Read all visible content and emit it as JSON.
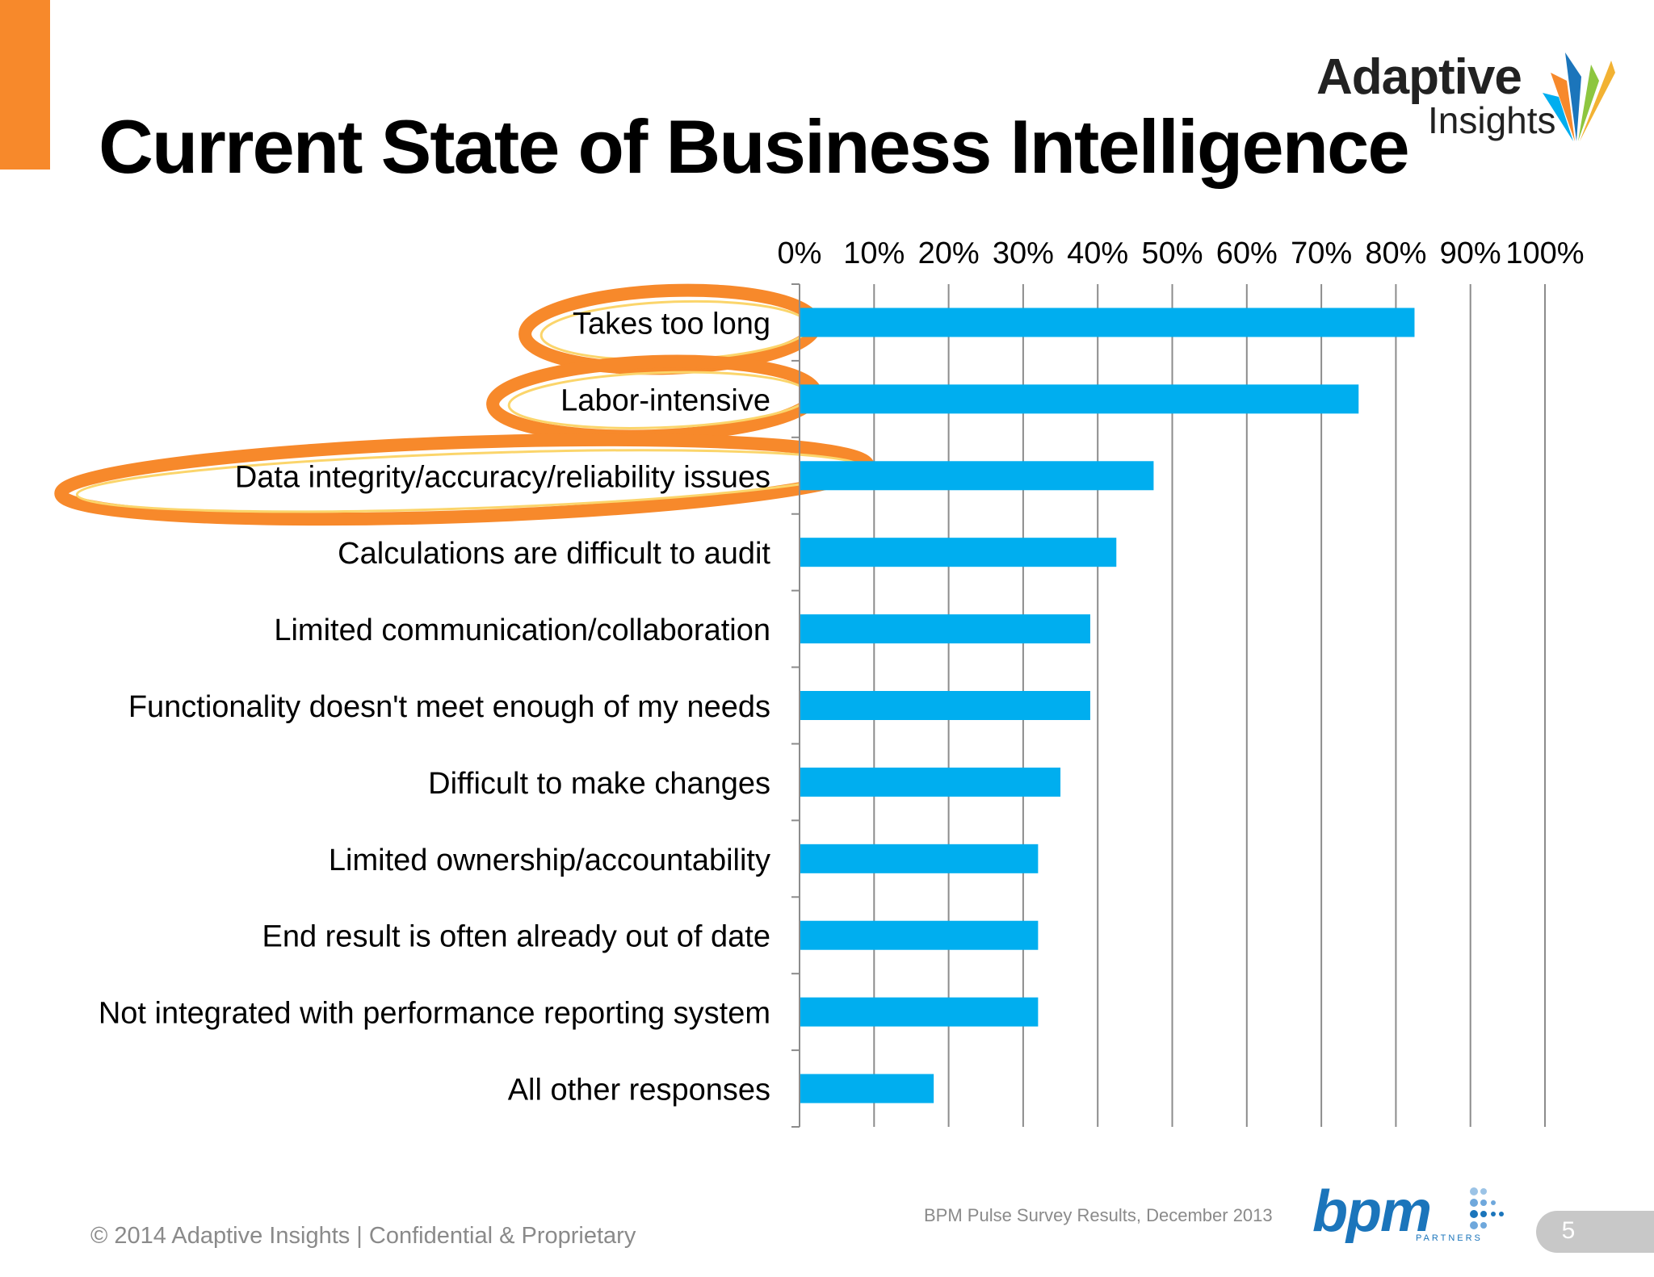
{
  "slide": {
    "title": "Current State of Business Intelligence",
    "logo_top": {
      "line1": "Adaptive",
      "line2": "Insights"
    },
    "footer": "© 2014 Adaptive Insights  |  Confidential & Proprietary",
    "source": "BPM Pulse Survey Results, December 2013",
    "logo_bottom": {
      "word": "bpm",
      "sub": "PARTNERS"
    },
    "page_number": "5",
    "colors": {
      "accent": "#f7892b",
      "bar": "#00aeef",
      "highlight": "#f7892b",
      "bpm": "#1b75bb"
    }
  },
  "chart_data": {
    "type": "bar",
    "orientation": "horizontal",
    "categories": [
      "Takes too long",
      "Labor-intensive",
      "Data integrity/accuracy/reliability issues",
      "Calculations are difficult to audit",
      "Limited communication/collaboration",
      "Functionality doesn't meet enough of my needs",
      "Difficult to make changes",
      "Limited ownership/accountability",
      "End result is often already out of date",
      "Not integrated with performance reporting system",
      "All other responses"
    ],
    "values": [
      82.5,
      75,
      47.5,
      42.5,
      39,
      39,
      35,
      32,
      32,
      32,
      18
    ],
    "xlim": [
      0,
      100
    ],
    "x_ticks": [
      "0%",
      "10%",
      "20%",
      "30%",
      "40%",
      "50%",
      "60%",
      "70%",
      "80%",
      "90%",
      "100%"
    ],
    "x_axis_position": "top",
    "grid": true,
    "highlighted_categories": [
      0,
      1,
      2
    ]
  }
}
